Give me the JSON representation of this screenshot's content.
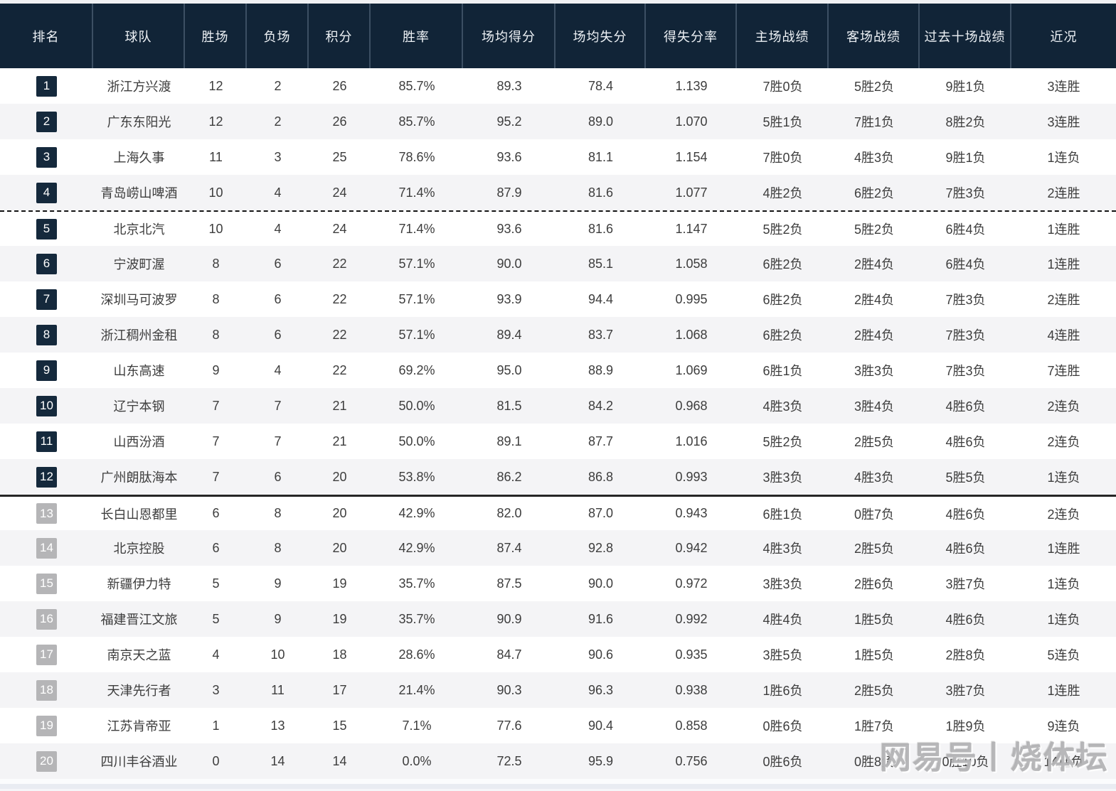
{
  "chart_data": {
    "type": "table",
    "columns": [
      {
        "key": "rank",
        "label": "排名"
      },
      {
        "key": "team",
        "label": "球队"
      },
      {
        "key": "wins",
        "label": "胜场"
      },
      {
        "key": "losses",
        "label": "负场"
      },
      {
        "key": "points",
        "label": "积分"
      },
      {
        "key": "win_pct",
        "label": "胜率"
      },
      {
        "key": "pts_for",
        "label": "场均得分"
      },
      {
        "key": "pts_against",
        "label": "场均失分"
      },
      {
        "key": "ratio",
        "label": "得失分率"
      },
      {
        "key": "home_record",
        "label": "主场战绩"
      },
      {
        "key": "away_record",
        "label": "客场战绩"
      },
      {
        "key": "last10",
        "label": "过去十场战绩"
      },
      {
        "key": "streak",
        "label": "近况"
      }
    ],
    "rows": [
      {
        "rank": 1,
        "team": "浙江方兴渡",
        "wins": "12",
        "losses": "2",
        "points": "26",
        "win_pct": "85.7%",
        "pts_for": "89.3",
        "pts_against": "78.4",
        "ratio": "1.139",
        "home_record": "7胜0负",
        "away_record": "5胜2负",
        "last10": "9胜1负",
        "streak": "3连胜"
      },
      {
        "rank": 2,
        "team": "广东东阳光",
        "wins": "12",
        "losses": "2",
        "points": "26",
        "win_pct": "85.7%",
        "pts_for": "95.2",
        "pts_against": "89.0",
        "ratio": "1.070",
        "home_record": "5胜1负",
        "away_record": "7胜1负",
        "last10": "8胜2负",
        "streak": "3连胜"
      },
      {
        "rank": 3,
        "team": "上海久事",
        "wins": "11",
        "losses": "3",
        "points": "25",
        "win_pct": "78.6%",
        "pts_for": "93.6",
        "pts_against": "81.1",
        "ratio": "1.154",
        "home_record": "7胜0负",
        "away_record": "4胜3负",
        "last10": "9胜1负",
        "streak": "1连负"
      },
      {
        "rank": 4,
        "team": "青岛崂山啤酒",
        "wins": "10",
        "losses": "4",
        "points": "24",
        "win_pct": "71.4%",
        "pts_for": "87.9",
        "pts_against": "81.6",
        "ratio": "1.077",
        "home_record": "4胜2负",
        "away_record": "6胜2负",
        "last10": "7胜3负",
        "streak": "2连胜"
      },
      {
        "rank": 5,
        "team": "北京北汽",
        "wins": "10",
        "losses": "4",
        "points": "24",
        "win_pct": "71.4%",
        "pts_for": "93.6",
        "pts_against": "81.6",
        "ratio": "1.147",
        "home_record": "5胜2负",
        "away_record": "5胜2负",
        "last10": "6胜4负",
        "streak": "1连胜"
      },
      {
        "rank": 6,
        "team": "宁波町渥",
        "wins": "8",
        "losses": "6",
        "points": "22",
        "win_pct": "57.1%",
        "pts_for": "90.0",
        "pts_against": "85.1",
        "ratio": "1.058",
        "home_record": "6胜2负",
        "away_record": "2胜4负",
        "last10": "6胜4负",
        "streak": "1连胜"
      },
      {
        "rank": 7,
        "team": "深圳马可波罗",
        "wins": "8",
        "losses": "6",
        "points": "22",
        "win_pct": "57.1%",
        "pts_for": "93.9",
        "pts_against": "94.4",
        "ratio": "0.995",
        "home_record": "6胜2负",
        "away_record": "2胜4负",
        "last10": "7胜3负",
        "streak": "2连胜"
      },
      {
        "rank": 8,
        "team": "浙江稠州金租",
        "wins": "8",
        "losses": "6",
        "points": "22",
        "win_pct": "57.1%",
        "pts_for": "89.4",
        "pts_against": "83.7",
        "ratio": "1.068",
        "home_record": "6胜2负",
        "away_record": "2胜4负",
        "last10": "7胜3负",
        "streak": "4连胜"
      },
      {
        "rank": 9,
        "team": "山东高速",
        "wins": "9",
        "losses": "4",
        "points": "22",
        "win_pct": "69.2%",
        "pts_for": "95.0",
        "pts_against": "88.9",
        "ratio": "1.069",
        "home_record": "6胜1负",
        "away_record": "3胜3负",
        "last10": "7胜3负",
        "streak": "7连胜"
      },
      {
        "rank": 10,
        "team": "辽宁本钢",
        "wins": "7",
        "losses": "7",
        "points": "21",
        "win_pct": "50.0%",
        "pts_for": "81.5",
        "pts_against": "84.2",
        "ratio": "0.968",
        "home_record": "4胜3负",
        "away_record": "3胜4负",
        "last10": "4胜6负",
        "streak": "2连负"
      },
      {
        "rank": 11,
        "team": "山西汾酒",
        "wins": "7",
        "losses": "7",
        "points": "21",
        "win_pct": "50.0%",
        "pts_for": "89.1",
        "pts_against": "87.7",
        "ratio": "1.016",
        "home_record": "5胜2负",
        "away_record": "2胜5负",
        "last10": "4胜6负",
        "streak": "2连负"
      },
      {
        "rank": 12,
        "team": "广州朗肽海本",
        "wins": "7",
        "losses": "6",
        "points": "20",
        "win_pct": "53.8%",
        "pts_for": "86.2",
        "pts_against": "86.8",
        "ratio": "0.993",
        "home_record": "3胜3负",
        "away_record": "4胜3负",
        "last10": "5胜5负",
        "streak": "1连负"
      },
      {
        "rank": 13,
        "team": "长白山恩都里",
        "wins": "6",
        "losses": "8",
        "points": "20",
        "win_pct": "42.9%",
        "pts_for": "82.0",
        "pts_against": "87.0",
        "ratio": "0.943",
        "home_record": "6胜1负",
        "away_record": "0胜7负",
        "last10": "4胜6负",
        "streak": "2连负"
      },
      {
        "rank": 14,
        "team": "北京控股",
        "wins": "6",
        "losses": "8",
        "points": "20",
        "win_pct": "42.9%",
        "pts_for": "87.4",
        "pts_against": "92.8",
        "ratio": "0.942",
        "home_record": "4胜3负",
        "away_record": "2胜5负",
        "last10": "4胜6负",
        "streak": "1连胜"
      },
      {
        "rank": 15,
        "team": "新疆伊力特",
        "wins": "5",
        "losses": "9",
        "points": "19",
        "win_pct": "35.7%",
        "pts_for": "87.5",
        "pts_against": "90.0",
        "ratio": "0.972",
        "home_record": "3胜3负",
        "away_record": "2胜6负",
        "last10": "3胜7负",
        "streak": "1连负"
      },
      {
        "rank": 16,
        "team": "福建晋江文旅",
        "wins": "5",
        "losses": "9",
        "points": "19",
        "win_pct": "35.7%",
        "pts_for": "90.9",
        "pts_against": "91.6",
        "ratio": "0.992",
        "home_record": "4胜4负",
        "away_record": "1胜5负",
        "last10": "4胜6负",
        "streak": "1连负"
      },
      {
        "rank": 17,
        "team": "南京天之蓝",
        "wins": "4",
        "losses": "10",
        "points": "18",
        "win_pct": "28.6%",
        "pts_for": "84.7",
        "pts_against": "90.6",
        "ratio": "0.935",
        "home_record": "3胜5负",
        "away_record": "1胜5负",
        "last10": "2胜8负",
        "streak": "5连负"
      },
      {
        "rank": 18,
        "team": "天津先行者",
        "wins": "3",
        "losses": "11",
        "points": "17",
        "win_pct": "21.4%",
        "pts_for": "90.3",
        "pts_against": "96.3",
        "ratio": "0.938",
        "home_record": "1胜6负",
        "away_record": "2胜5负",
        "last10": "3胜7负",
        "streak": "1连胜"
      },
      {
        "rank": 19,
        "team": "江苏肯帝亚",
        "wins": "1",
        "losses": "13",
        "points": "15",
        "win_pct": "7.1%",
        "pts_for": "77.6",
        "pts_against": "90.4",
        "ratio": "0.858",
        "home_record": "0胜6负",
        "away_record": "1胜7负",
        "last10": "1胜9负",
        "streak": "9连负"
      },
      {
        "rank": 20,
        "team": "四川丰谷酒业",
        "wins": "0",
        "losses": "14",
        "points": "14",
        "win_pct": "0.0%",
        "pts_for": "72.5",
        "pts_against": "95.9",
        "ratio": "0.756",
        "home_record": "0胜6负",
        "away_record": "0胜8负",
        "last10": "0胜10负",
        "streak": "14连负"
      }
    ],
    "layout_hints": {
      "dashed_separator_above_rank": 5,
      "solid_separator_above_rank": 13,
      "grid": "zebra-rows",
      "legend_position": "none"
    }
  },
  "watermark": {
    "text": "网易号丨烧体坛"
  },
  "colors": {
    "header_bg": "#112437",
    "badge_dark": "#15293c",
    "badge_gray": "#b5b5b7",
    "row_alt": "#f4f4f6"
  }
}
